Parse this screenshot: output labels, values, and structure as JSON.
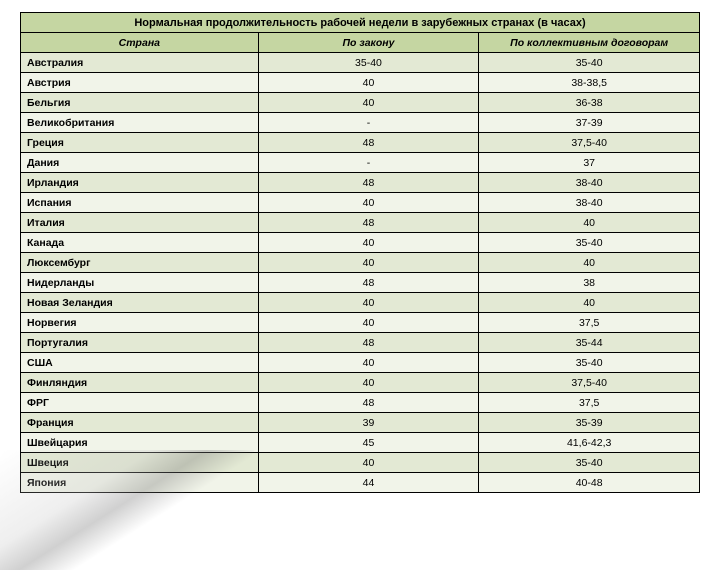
{
  "table": {
    "title": "Нормальная продолжительность рабочей недели в зарубежных странах (в часах)",
    "columns": [
      "Страна",
      "По закону",
      "По коллективным договорам"
    ],
    "rows": [
      [
        "Австралия",
        "35-40",
        "35-40"
      ],
      [
        "Австрия",
        "40",
        "38-38,5"
      ],
      [
        "Бельгия",
        "40",
        "36-38"
      ],
      [
        "Великобритания",
        "-",
        "37-39"
      ],
      [
        "Греция",
        "48",
        "37,5-40"
      ],
      [
        "Дания",
        "-",
        "37"
      ],
      [
        "Ирландия",
        "48",
        "38-40"
      ],
      [
        "Испания",
        "40",
        "38-40"
      ],
      [
        "Италия",
        "48",
        "40"
      ],
      [
        "Канада",
        "40",
        "35-40"
      ],
      [
        "Люксембург",
        "40",
        "40"
      ],
      [
        "Нидерланды",
        "48",
        "38"
      ],
      [
        "Новая Зеландия",
        "40",
        "40"
      ],
      [
        "Норвегия",
        "40",
        "37,5"
      ],
      [
        "Португалия",
        "48",
        "35-44"
      ],
      [
        "США",
        "40",
        "35-40"
      ],
      [
        "Финляндия",
        "40",
        "37,5-40"
      ],
      [
        "ФРГ",
        "48",
        "37,5"
      ],
      [
        "Франция",
        "39",
        "35-39"
      ],
      [
        "Швейцария",
        "45",
        "41,6-42,3"
      ],
      [
        "Швеция",
        "40",
        "35-40"
      ],
      [
        "Япония",
        "44",
        "40-48"
      ]
    ],
    "colors": {
      "header_bg": "#c5d6a2",
      "row_odd": "#e3e9d4",
      "row_even": "#f1f4e9",
      "border": "#000000"
    },
    "fonts": {
      "title_size": 11,
      "body_size": 10.5,
      "family": "Arial"
    },
    "column_widths_pct": [
      35,
      32.5,
      32.5
    ]
  }
}
